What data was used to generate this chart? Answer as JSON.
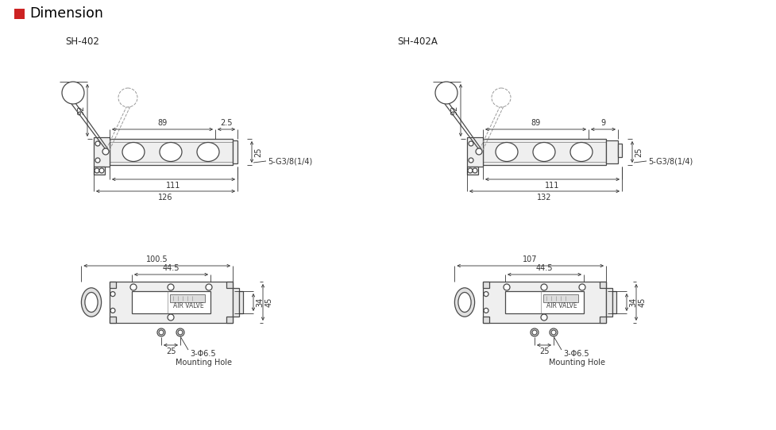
{
  "title": "Dimension",
  "title_color": "#cc2222",
  "bg_color": "#ffffff",
  "line_color": "#4a4a4a",
  "dim_color": "#333333",
  "text_color": "#222222",
  "dashed_color": "#999999",
  "models": [
    "SH-402",
    "SH-402A"
  ],
  "top_left": {
    "h_lever": "92",
    "d_mid": "89",
    "d_top": "2.5",
    "d_body": "111",
    "d_total": "126",
    "h_body": "25",
    "port": "5-G3/8(1/4)"
  },
  "top_right": {
    "h_lever": "92",
    "d_mid": "89",
    "d_top": "9",
    "d_body": "111",
    "d_total": "132",
    "h_body": "25",
    "port": "5-G3/8(1/4)"
  },
  "bot_left": {
    "w_total": "100.5",
    "w_inner": "44.5",
    "w_hole": "25",
    "h_body": "45",
    "h_inner": "34",
    "hole_label": "3-Φ6.5",
    "mount_label": "Mounting Hole"
  },
  "bot_right": {
    "w_total": "107",
    "w_inner": "44.5",
    "w_hole": "25",
    "h_body": "45",
    "h_inner": "34",
    "hole_label": "3-Φ6.5",
    "mount_label": "Mounting Hole"
  }
}
